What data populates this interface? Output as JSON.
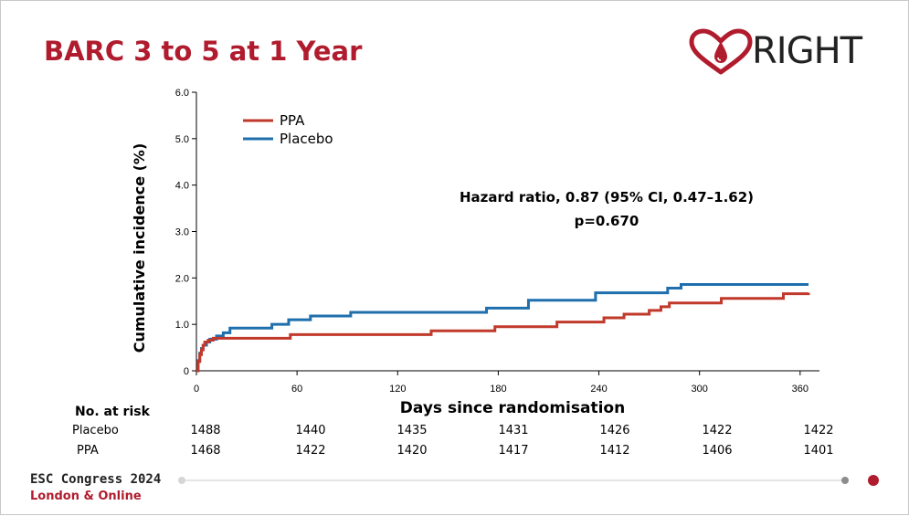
{
  "title": "BARC 3 to 5 at 1 Year",
  "logo": {
    "text": "RIGHT",
    "icon": "heart-droplet-icon"
  },
  "colors": {
    "title": "#b01c2e",
    "ppa": "#c0392b",
    "placebo": "#1f6fad",
    "footer_accent": "#b01c2e"
  },
  "chart_data": {
    "type": "line",
    "step": true,
    "xlabel": "Days since randomisation",
    "ylabel": "Cumulative incidence (%)",
    "xlim": [
      0,
      365
    ],
    "ylim": [
      0,
      6.0
    ],
    "xticks": [
      0,
      60,
      120,
      180,
      240,
      300,
      360
    ],
    "xtick_labels": [
      "0",
      "60",
      "120",
      "180",
      "240",
      "300",
      "360"
    ],
    "yticks": [
      0,
      1.0,
      2.0,
      3.0,
      4.0,
      5.0,
      6.0
    ],
    "ytick_labels": [
      "0",
      "1.0",
      "2.0",
      "3.0",
      "4.0",
      "5.0",
      "6.0"
    ],
    "grid": false,
    "legend_position": "top-left",
    "series": [
      {
        "name": "PPA",
        "x": [
          0,
          1,
          2,
          3,
          4,
          5,
          7,
          10,
          14,
          56,
          140,
          178,
          215,
          243,
          255,
          270,
          277,
          282,
          313,
          350,
          365
        ],
        "y": [
          0,
          0.2,
          0.35,
          0.45,
          0.55,
          0.62,
          0.66,
          0.7,
          0.7,
          0.78,
          0.86,
          0.95,
          1.05,
          1.14,
          1.22,
          1.3,
          1.38,
          1.46,
          1.56,
          1.66,
          1.68
        ]
      },
      {
        "name": "Placebo",
        "x": [
          0,
          1,
          2,
          3,
          4,
          6,
          8,
          12,
          16,
          20,
          45,
          55,
          68,
          92,
          173,
          198,
          238,
          281,
          289,
          365
        ],
        "y": [
          0,
          0.22,
          0.38,
          0.48,
          0.55,
          0.62,
          0.68,
          0.75,
          0.82,
          0.92,
          1.0,
          1.1,
          1.18,
          1.26,
          1.35,
          1.52,
          1.68,
          1.78,
          1.86,
          1.86
        ]
      }
    ],
    "annotations": [
      "Hazard ratio, 0.87 (95% CI, 0.47–1.62)",
      "p=0.670"
    ]
  },
  "risk_table": {
    "title": "No. at risk",
    "rows": [
      {
        "name": "Placebo",
        "values": [
          "1488",
          "1440",
          "1435",
          "1431",
          "1426",
          "1422",
          "1422"
        ]
      },
      {
        "name": "PPA",
        "values": [
          "1468",
          "1422",
          "1420",
          "1417",
          "1412",
          "1406",
          "1401"
        ]
      }
    ]
  },
  "footer": {
    "name": "ESC Congress 2024",
    "location": "London & Online"
  }
}
